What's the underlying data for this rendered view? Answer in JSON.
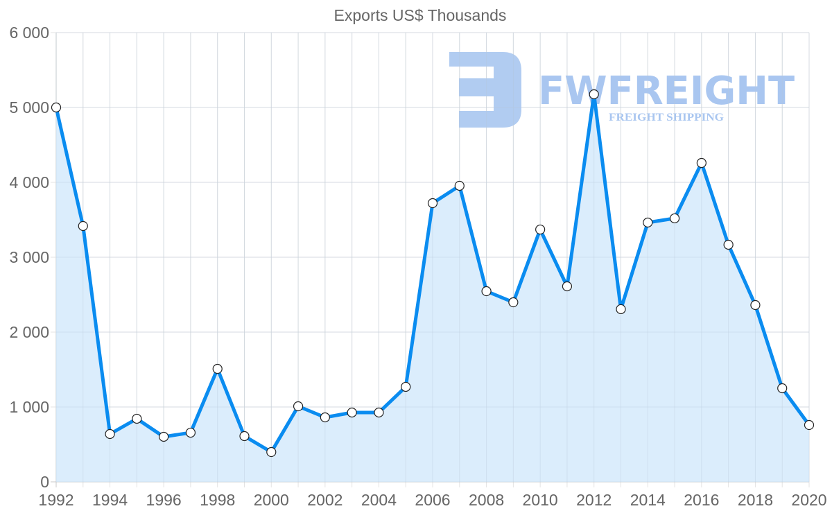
{
  "chart_data": {
    "type": "line",
    "title": "Exports US$ Thousands",
    "xlabel": "",
    "ylabel": "",
    "x": [
      1992,
      1993,
      1994,
      1995,
      1996,
      1997,
      1998,
      1999,
      2000,
      2001,
      2002,
      2003,
      2004,
      2005,
      2006,
      2007,
      2008,
      2009,
      2010,
      2011,
      2012,
      2013,
      2014,
      2015,
      2016,
      2017,
      2018,
      2019,
      2020
    ],
    "series": [
      {
        "name": "Exports US$ Thousands",
        "values": [
          5000,
          3417,
          639,
          843,
          602,
          657,
          1509,
          611,
          398,
          1009,
          861,
          926,
          926,
          1269,
          3722,
          3954,
          2546,
          2398,
          3370,
          2611,
          5176,
          2306,
          3463,
          3519,
          4259,
          3167,
          2361,
          1250,
          759
        ],
        "color": "#0a8cf0",
        "fill": "#d9ecfc"
      }
    ],
    "xticks": [
      "1992",
      "1994",
      "1996",
      "1998",
      "2000",
      "2002",
      "2004",
      "2006",
      "2008",
      "2010",
      "2012",
      "2014",
      "2016",
      "2018",
      "2020"
    ],
    "yticks": [
      "0",
      "1 000",
      "2 000",
      "3 000",
      "4 000",
      "5 000",
      "6 000"
    ],
    "xlim": [
      1992,
      2020
    ],
    "ylim": [
      0,
      6000
    ],
    "grid": true,
    "legend": "none",
    "fill_area": true
  },
  "watermark": {
    "brand": "FWFREIGHT",
    "tagline": "FREIGHT SHIPPING"
  }
}
